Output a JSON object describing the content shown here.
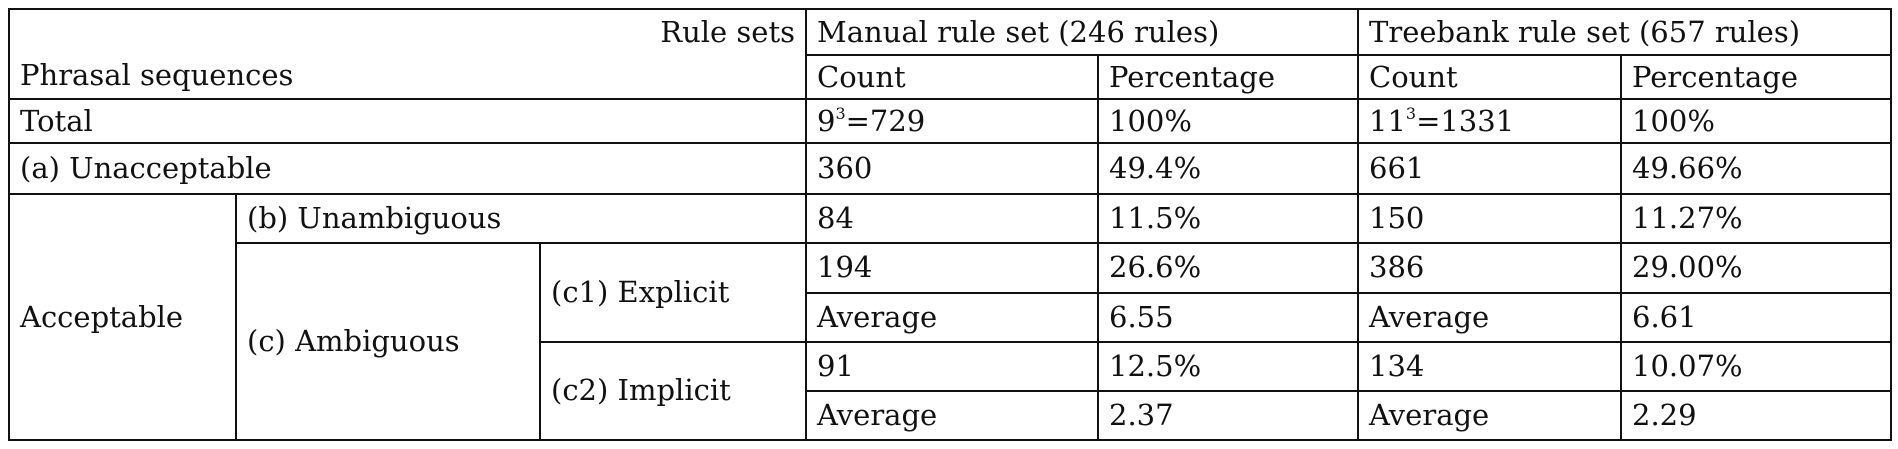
{
  "header": {
    "rule_sets_label": "Rule sets",
    "phrasal_sequences_label": "Phrasal sequences",
    "manual_title": "Manual rule set (246 rules)",
    "treebank_title": "Treebank rule set (657 rules)",
    "count_label": "Count",
    "percentage_label": "Percentage"
  },
  "rows": {
    "total": {
      "label": "Total",
      "manual_count_base": "9",
      "manual_count_exp": "3",
      "manual_count_rest": "=729",
      "manual_pct": "100%",
      "treebank_count_base": "11",
      "treebank_count_exp": "3",
      "treebank_count_rest": "=1331",
      "treebank_pct": "100%"
    },
    "unacceptable": {
      "label": "(a) Unacceptable",
      "manual_count": "360",
      "manual_pct": "49.4%",
      "treebank_count": "661",
      "treebank_pct": "49.66%"
    },
    "acceptable_label": "Acceptable",
    "unambiguous": {
      "label": "(b) Unambiguous",
      "manual_count": "84",
      "manual_pct": "11.5%",
      "treebank_count": "150",
      "treebank_pct": "11.27%"
    },
    "ambiguous_label": "(c) Ambiguous",
    "explicit": {
      "label": "(c1) Explicit",
      "manual_count": "194",
      "manual_pct": "26.6%",
      "treebank_count": "386",
      "treebank_pct": "29.00%",
      "avg_label": "Average",
      "manual_avg": "6.55",
      "treebank_avg": "6.61"
    },
    "implicit": {
      "label": "(c2) Implicit",
      "manual_count": "91",
      "manual_pct": "12.5%",
      "treebank_count": "134",
      "treebank_pct": "10.07%",
      "avg_label": "Average",
      "manual_avg": "2.37",
      "treebank_avg": "2.29"
    }
  }
}
